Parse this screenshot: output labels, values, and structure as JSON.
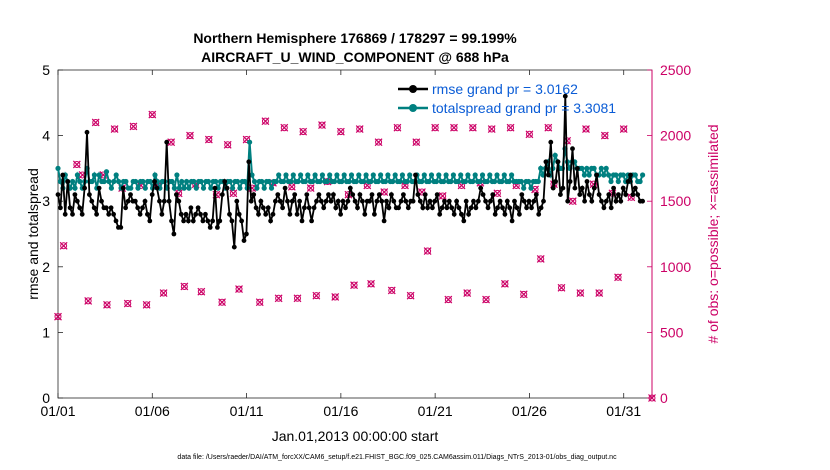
{
  "chart_data": {
    "type": "line",
    "title_line1": "Northern Hemisphere 176869 / 178297 = 99.199%",
    "title_line2": "AIRCRAFT_U_WIND_COMPONENT @ 688 hPa",
    "xlabel": "Jan.01,2013 00:00:00 start",
    "ylabel_left": "rmse and totalspread",
    "ylabel_right": "# of obs: o=possible; ×=assimilated",
    "footnote": "data file: /Users/raeder/DAI/ATM_forcXX/CAM6_setup/f.e21.FHIST_BGC.f09_025.CAM6assim.011/Diags_NTrS_2013-01/obs_diag_output.nc",
    "xlim": [
      0,
      31.5
    ],
    "ylim_left": [
      0,
      5
    ],
    "ylim_right": [
      0,
      2500
    ],
    "x_ticks": [
      0,
      5,
      10,
      15,
      20,
      25,
      30
    ],
    "x_tick_labels": [
      "01/01",
      "01/06",
      "01/11",
      "01/16",
      "01/21",
      "01/26",
      "01/31"
    ],
    "y_left_ticks": [
      "0",
      "1",
      "2",
      "3",
      "4",
      "5"
    ],
    "y_right_ticks": [
      "0",
      "500",
      "1000",
      "1500",
      "2000",
      "2500"
    ],
    "colors": {
      "rmse": "#000000",
      "spread": "#008080",
      "obs": "#cc0066",
      "legend_text": "#0a5cd6",
      "right_axis": "#cc0066"
    },
    "series": [
      {
        "name": "rmse",
        "legend": "rmse grand pr = 3.0162",
        "axis": "left",
        "values": [
          3.1,
          2.9,
          3.4,
          2.8,
          3.3,
          2.9,
          2.8,
          3.1,
          3.0,
          2.9,
          2.8,
          3.2,
          4.05,
          3.1,
          3.0,
          2.9,
          2.8,
          3.2,
          3.0,
          2.9,
          2.9,
          2.8,
          2.9,
          2.8,
          2.7,
          2.6,
          2.6,
          3.2,
          2.9,
          3.0,
          3.1,
          3.0,
          3.0,
          2.9,
          2.8,
          2.9,
          3.0,
          2.8,
          2.7,
          3.1,
          3.3,
          3.2,
          3.0,
          2.8,
          3.0,
          3.9,
          3.0,
          2.7,
          2.5,
          3.1,
          3.0,
          2.8,
          2.7,
          2.8,
          2.7,
          2.9,
          2.7,
          2.8,
          2.9,
          2.8,
          2.7,
          2.8,
          2.7,
          2.6,
          2.7,
          3.2,
          2.6,
          2.7,
          3.1,
          3.3,
          3.2,
          2.8,
          2.7,
          2.3,
          3.0,
          2.8,
          2.7,
          2.4,
          2.5,
          3.6,
          3.0,
          3.1,
          2.9,
          2.8,
          3.0,
          2.9,
          2.8,
          2.9,
          2.7,
          2.8,
          3.0,
          3.1,
          3.0,
          2.9,
          3.2,
          3.0,
          2.8,
          3.0,
          3.1,
          2.8,
          3.0,
          2.7,
          2.9,
          3.1,
          2.9,
          2.7,
          2.9,
          3.0,
          3.1,
          3.0,
          2.9,
          3.0,
          3.1,
          3.0,
          3.1,
          2.9,
          3.0,
          2.8,
          3.0,
          2.9,
          3.0,
          3.2,
          3.1,
          3.0,
          2.9,
          3.1,
          3.0,
          2.8,
          3.0,
          3.0,
          3.1,
          2.8,
          3.0,
          3.1,
          3.0,
          2.7,
          3.0,
          2.9,
          3.1,
          3.0,
          2.9,
          2.9,
          3.0,
          3.1,
          3.0,
          2.9,
          3.0,
          3.0,
          3.4,
          3.1,
          3.0,
          2.9,
          3.1,
          2.9,
          3.0,
          2.9,
          3.0,
          3.1,
          2.8,
          2.9,
          3.0,
          2.9,
          3.0,
          2.9,
          2.8,
          3.0,
          2.9,
          2.8,
          2.7,
          3.0,
          2.8,
          2.9,
          3.0,
          2.9,
          3.0,
          3.2,
          3.1,
          3.0,
          2.9,
          3.0,
          3.1,
          2.8,
          2.9,
          3.0,
          2.9,
          2.8,
          3.0,
          2.9,
          2.7,
          3.0,
          2.9,
          2.8,
          3.1,
          3.0,
          2.9,
          3.0,
          2.9,
          3.0,
          3.1,
          2.8,
          2.9,
          3.0,
          3.6,
          3.4,
          3.9,
          3.2,
          3.3,
          3.6,
          3.1,
          3.2,
          4.6,
          3.0,
          3.3,
          3.8,
          3.2,
          3.5,
          3.1,
          3.2,
          3.0,
          3.3,
          3.1,
          3.0,
          3.2,
          3.4,
          3.1,
          3.0,
          2.9,
          3.0,
          3.1,
          2.9,
          3.2,
          3.0,
          3.1,
          3.0,
          3.2,
          3.1,
          3.3,
          3.4,
          3.1,
          3.2,
          3.1,
          3.0,
          3.0
        ]
      },
      {
        "name": "totalspread",
        "legend": "totalspread grand pr = 3.3081",
        "axis": "left",
        "values": [
          3.5,
          3.3,
          3.2,
          3.4,
          3.3,
          3.2,
          3.3,
          3.2,
          3.4,
          3.3,
          3.2,
          3.3,
          3.5,
          3.3,
          3.3,
          3.4,
          3.2,
          3.4,
          3.3,
          3.3,
          3.45,
          3.3,
          3.2,
          3.3,
          3.4,
          3.3,
          3.2,
          3.3,
          3.3,
          3.2,
          3.2,
          3.3,
          3.3,
          3.2,
          3.3,
          3.3,
          3.2,
          3.3,
          3.3,
          3.2,
          3.4,
          3.3,
          3.2,
          3.3,
          3.3,
          3.2,
          3.3,
          3.3,
          3.2,
          3.4,
          3.2,
          3.3,
          3.2,
          3.3,
          3.2,
          3.3,
          3.3,
          3.2,
          3.3,
          3.3,
          3.2,
          3.3,
          3.3,
          3.2,
          3.3,
          3.3,
          3.2,
          3.3,
          3.3,
          3.2,
          3.3,
          3.3,
          3.2,
          3.3,
          3.3,
          3.2,
          3.3,
          3.3,
          3.2,
          3.9,
          3.4,
          3.3,
          3.2,
          3.3,
          3.3,
          3.2,
          3.3,
          3.3,
          3.2,
          3.3,
          3.3,
          3.4,
          3.3,
          3.3,
          3.4,
          3.3,
          3.3,
          3.4,
          3.3,
          3.3,
          3.4,
          3.3,
          3.3,
          3.4,
          3.3,
          3.3,
          3.4,
          3.3,
          3.3,
          3.4,
          3.3,
          3.3,
          3.4,
          3.3,
          3.3,
          3.4,
          3.3,
          3.3,
          3.4,
          3.3,
          3.3,
          3.4,
          3.3,
          3.3,
          3.4,
          3.3,
          3.3,
          3.4,
          3.3,
          3.3,
          3.4,
          3.3,
          3.3,
          3.4,
          3.3,
          3.3,
          3.4,
          3.3,
          3.3,
          3.4,
          3.3,
          3.3,
          3.4,
          3.3,
          3.3,
          3.4,
          3.3,
          3.3,
          3.4,
          3.3,
          3.3,
          3.4,
          3.3,
          3.3,
          3.4,
          3.3,
          3.3,
          3.4,
          3.3,
          3.3,
          3.4,
          3.3,
          3.3,
          3.4,
          3.3,
          3.3,
          3.4,
          3.3,
          3.3,
          3.4,
          3.3,
          3.3,
          3.4,
          3.3,
          3.3,
          3.4,
          3.3,
          3.3,
          3.4,
          3.3,
          3.3,
          3.4,
          3.3,
          3.3,
          3.4,
          3.3,
          3.3,
          3.4,
          3.3,
          3.3,
          3.3,
          3.3,
          3.2,
          3.3,
          3.3,
          3.2,
          3.3,
          3.3,
          3.3,
          3.5,
          3.4,
          3.5,
          3.6,
          3.4,
          3.5,
          3.7,
          3.6,
          3.5,
          3.5,
          3.8,
          3.6,
          3.5,
          3.6,
          3.6,
          3.5,
          3.5,
          3.5,
          3.4,
          3.5,
          3.4,
          3.5,
          3.5,
          3.4,
          3.4,
          3.5,
          3.4,
          3.5,
          3.4,
          3.3,
          3.4,
          3.4,
          3.3,
          3.4,
          3.4,
          3.3,
          3.4,
          3.3,
          3.4,
          3.4,
          3.3,
          3.3,
          3.4
        ]
      }
    ],
    "obs_counts": [
      [
        0,
        620
      ],
      [
        0.3,
        1160
      ],
      [
        1,
        1780
      ],
      [
        1.3,
        1700
      ],
      [
        1.6,
        740
      ],
      [
        2,
        2100
      ],
      [
        2.4,
        1700
      ],
      [
        2.6,
        710
      ],
      [
        3,
        2050
      ],
      [
        3.4,
        1600
      ],
      [
        3.7,
        720
      ],
      [
        4,
        2070
      ],
      [
        4.4,
        1620
      ],
      [
        4.7,
        710
      ],
      [
        5,
        2160
      ],
      [
        5.3,
        1620
      ],
      [
        5.6,
        800
      ],
      [
        6,
        1950
      ],
      [
        6.4,
        1560
      ],
      [
        6.7,
        850
      ],
      [
        7,
        2000
      ],
      [
        7.3,
        1630
      ],
      [
        7.6,
        810
      ],
      [
        8,
        1970
      ],
      [
        8.4,
        1550
      ],
      [
        8.7,
        730
      ],
      [
        9,
        1930
      ],
      [
        9.3,
        1560
      ],
      [
        9.6,
        830
      ],
      [
        10,
        1970
      ],
      [
        10.3,
        1600
      ],
      [
        10.7,
        730
      ],
      [
        11,
        2110
      ],
      [
        11.4,
        1640
      ],
      [
        11.7,
        760
      ],
      [
        12,
        2060
      ],
      [
        12.4,
        1610
      ],
      [
        12.7,
        760
      ],
      [
        13,
        2030
      ],
      [
        13.4,
        1600
      ],
      [
        13.7,
        780
      ],
      [
        14,
        2080
      ],
      [
        14.3,
        1650
      ],
      [
        14.7,
        770
      ],
      [
        15,
        2030
      ],
      [
        15.4,
        1550
      ],
      [
        15.7,
        860
      ],
      [
        16,
        2050
      ],
      [
        16.4,
        1620
      ],
      [
        16.6,
        870
      ],
      [
        17,
        1950
      ],
      [
        17.3,
        1570
      ],
      [
        17.7,
        820
      ],
      [
        18,
        2060
      ],
      [
        18.4,
        1620
      ],
      [
        18.7,
        780
      ],
      [
        19,
        1950
      ],
      [
        19.3,
        1570
      ],
      [
        19.6,
        1120
      ],
      [
        20,
        2060
      ],
      [
        20.4,
        1540
      ],
      [
        20.7,
        750
      ],
      [
        21,
        2060
      ],
      [
        21.4,
        1620
      ],
      [
        21.7,
        800
      ],
      [
        22,
        2060
      ],
      [
        22.4,
        1640
      ],
      [
        22.7,
        750
      ],
      [
        23,
        2050
      ],
      [
        23.3,
        1560
      ],
      [
        23.7,
        870
      ],
      [
        24,
        2060
      ],
      [
        24.3,
        1620
      ],
      [
        24.7,
        790
      ],
      [
        25,
        2010
      ],
      [
        25.3,
        1590
      ],
      [
        25.6,
        1060
      ],
      [
        26,
        2060
      ],
      [
        26.3,
        1630
      ],
      [
        26.7,
        840
      ],
      [
        27,
        1960
      ],
      [
        27.3,
        1500
      ],
      [
        27.7,
        800
      ],
      [
        28,
        2050
      ],
      [
        28.4,
        1630
      ],
      [
        28.7,
        800
      ],
      [
        29,
        2000
      ],
      [
        29.4,
        1560
      ],
      [
        29.7,
        920
      ],
      [
        30,
        2050
      ],
      [
        30.4,
        1530
      ],
      [
        31.5,
        0
      ]
    ]
  }
}
